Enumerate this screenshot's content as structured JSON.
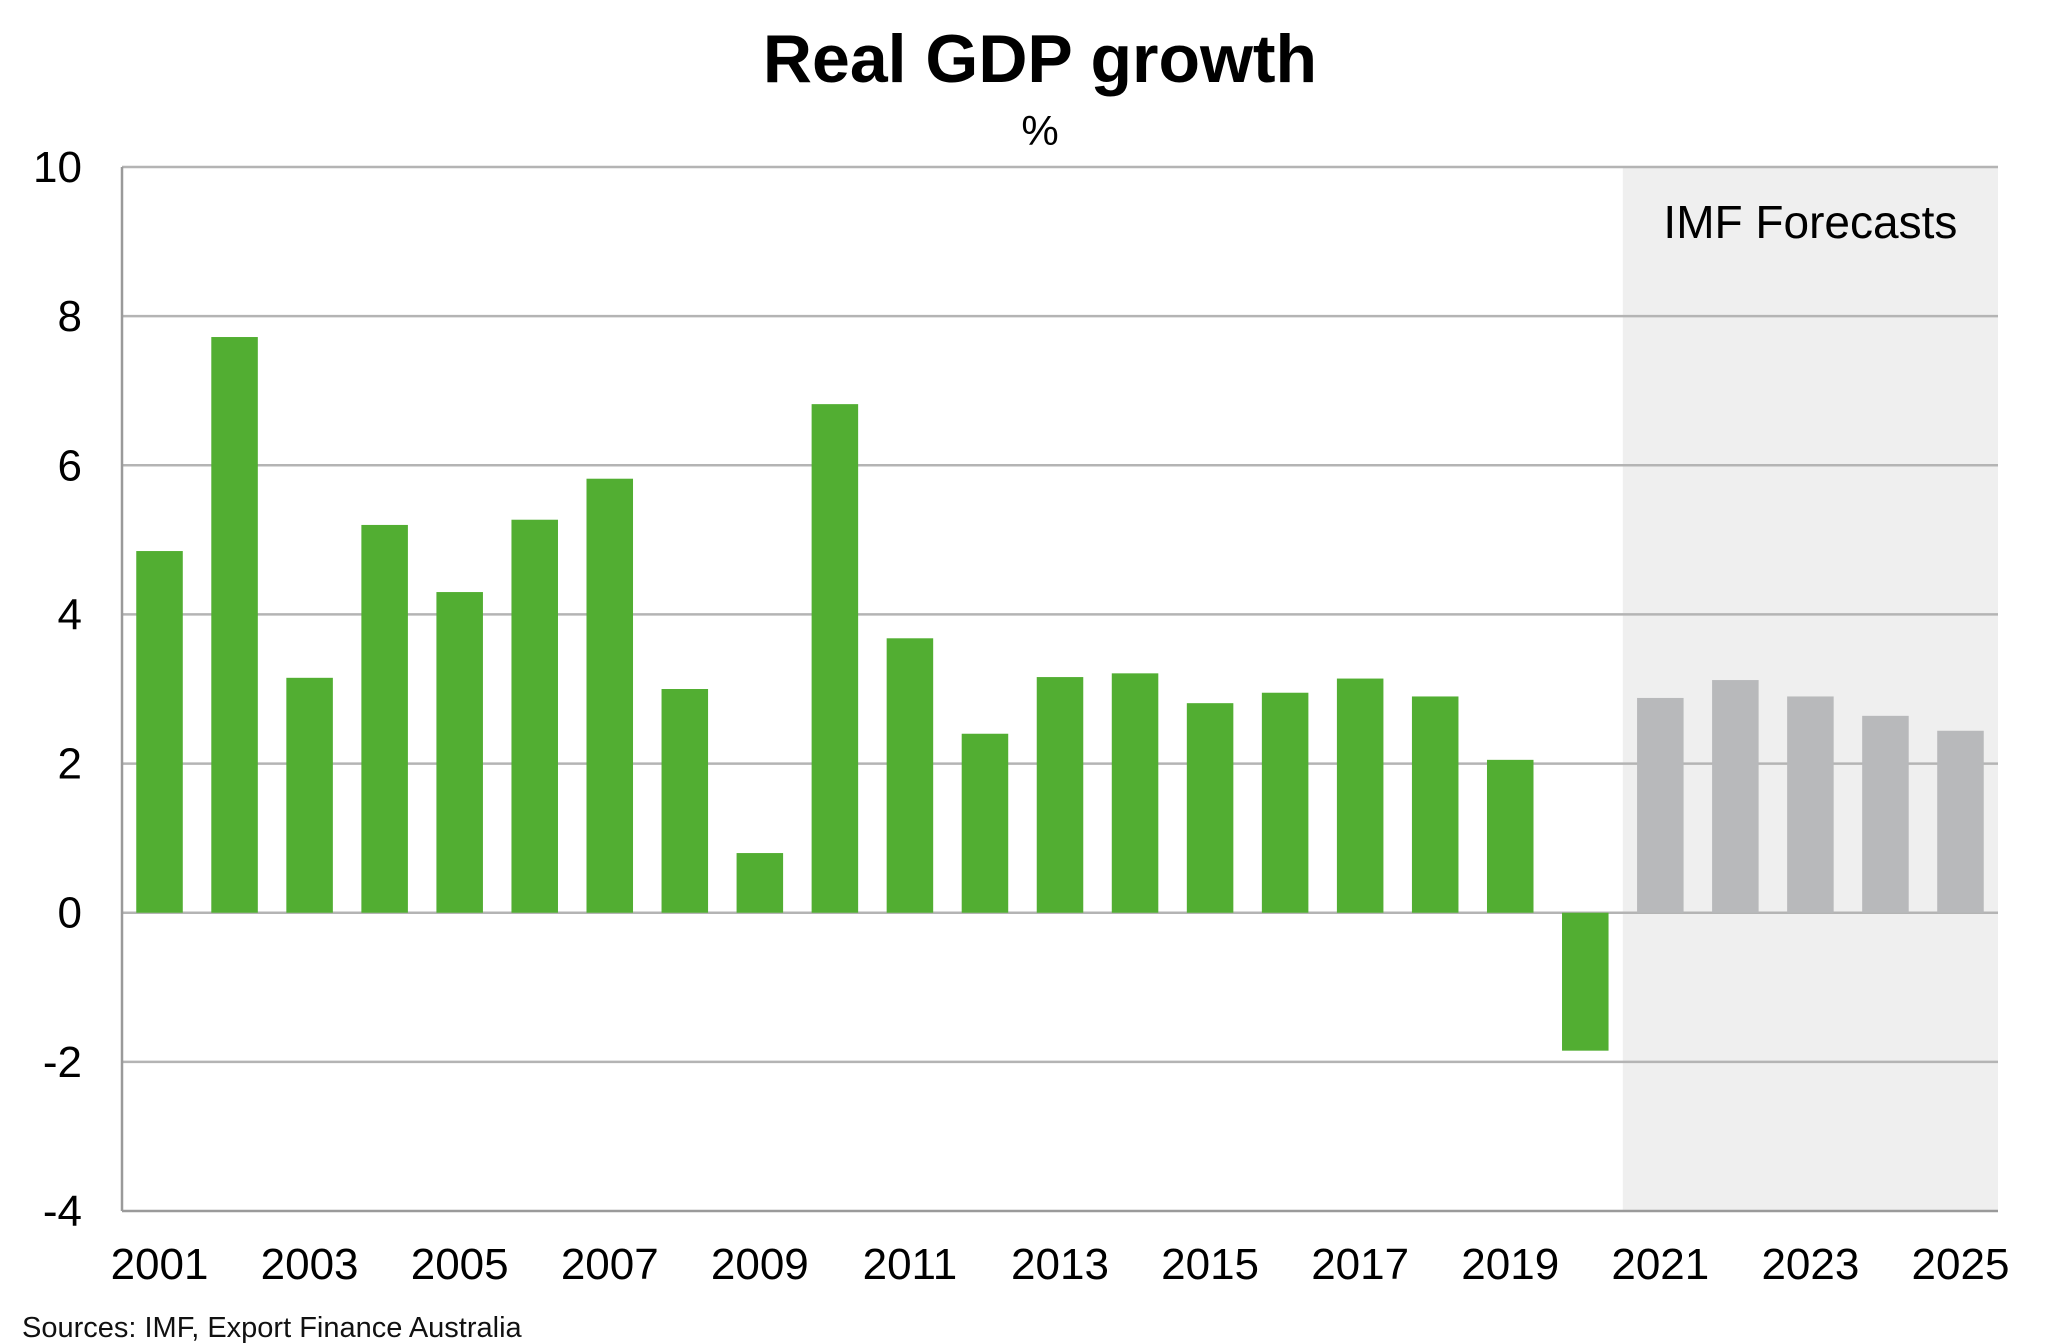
{
  "chart_data": {
    "type": "bar",
    "title": "Real GDP growth",
    "subtitle": "%",
    "xlabel": "",
    "ylabel": "",
    "categories": [
      "2001",
      "2002",
      "2003",
      "2004",
      "2005",
      "2006",
      "2007",
      "2008",
      "2009",
      "2010",
      "2011",
      "2012",
      "2013",
      "2014",
      "2015",
      "2016",
      "2017",
      "2018",
      "2019",
      "2020",
      "2021",
      "2022",
      "2023",
      "2024",
      "2025"
    ],
    "x_tick_labels": [
      "2001",
      "2003",
      "2005",
      "2007",
      "2009",
      "2011",
      "2013",
      "2015",
      "2017",
      "2019",
      "2021",
      "2023",
      "2025"
    ],
    "series": [
      {
        "values": [
          4.85,
          7.72,
          3.15,
          5.2,
          4.3,
          5.27,
          5.82,
          3.0,
          0.8,
          6.82,
          3.68,
          2.4,
          3.16,
          3.21,
          2.81,
          2.95,
          3.14,
          2.9,
          2.05,
          -1.85,
          2.88,
          3.12,
          2.9,
          2.64,
          2.44
        ]
      }
    ],
    "forecast_start_category": "2021",
    "forecast_annotation": "IMF Forecasts",
    "ylim": [
      -4,
      10
    ],
    "yticks": [
      -4,
      -2,
      0,
      2,
      4,
      6,
      8,
      10
    ],
    "grid": true,
    "legend": "none",
    "colors": {
      "actual": "#52ae32",
      "forecast": "#b8b9bb",
      "forecast_shading": "#efefef",
      "gridline": "#b4b4b4",
      "axis": "#9a9a9a"
    }
  },
  "source_note": "Sources: IMF, Export Finance Australia"
}
